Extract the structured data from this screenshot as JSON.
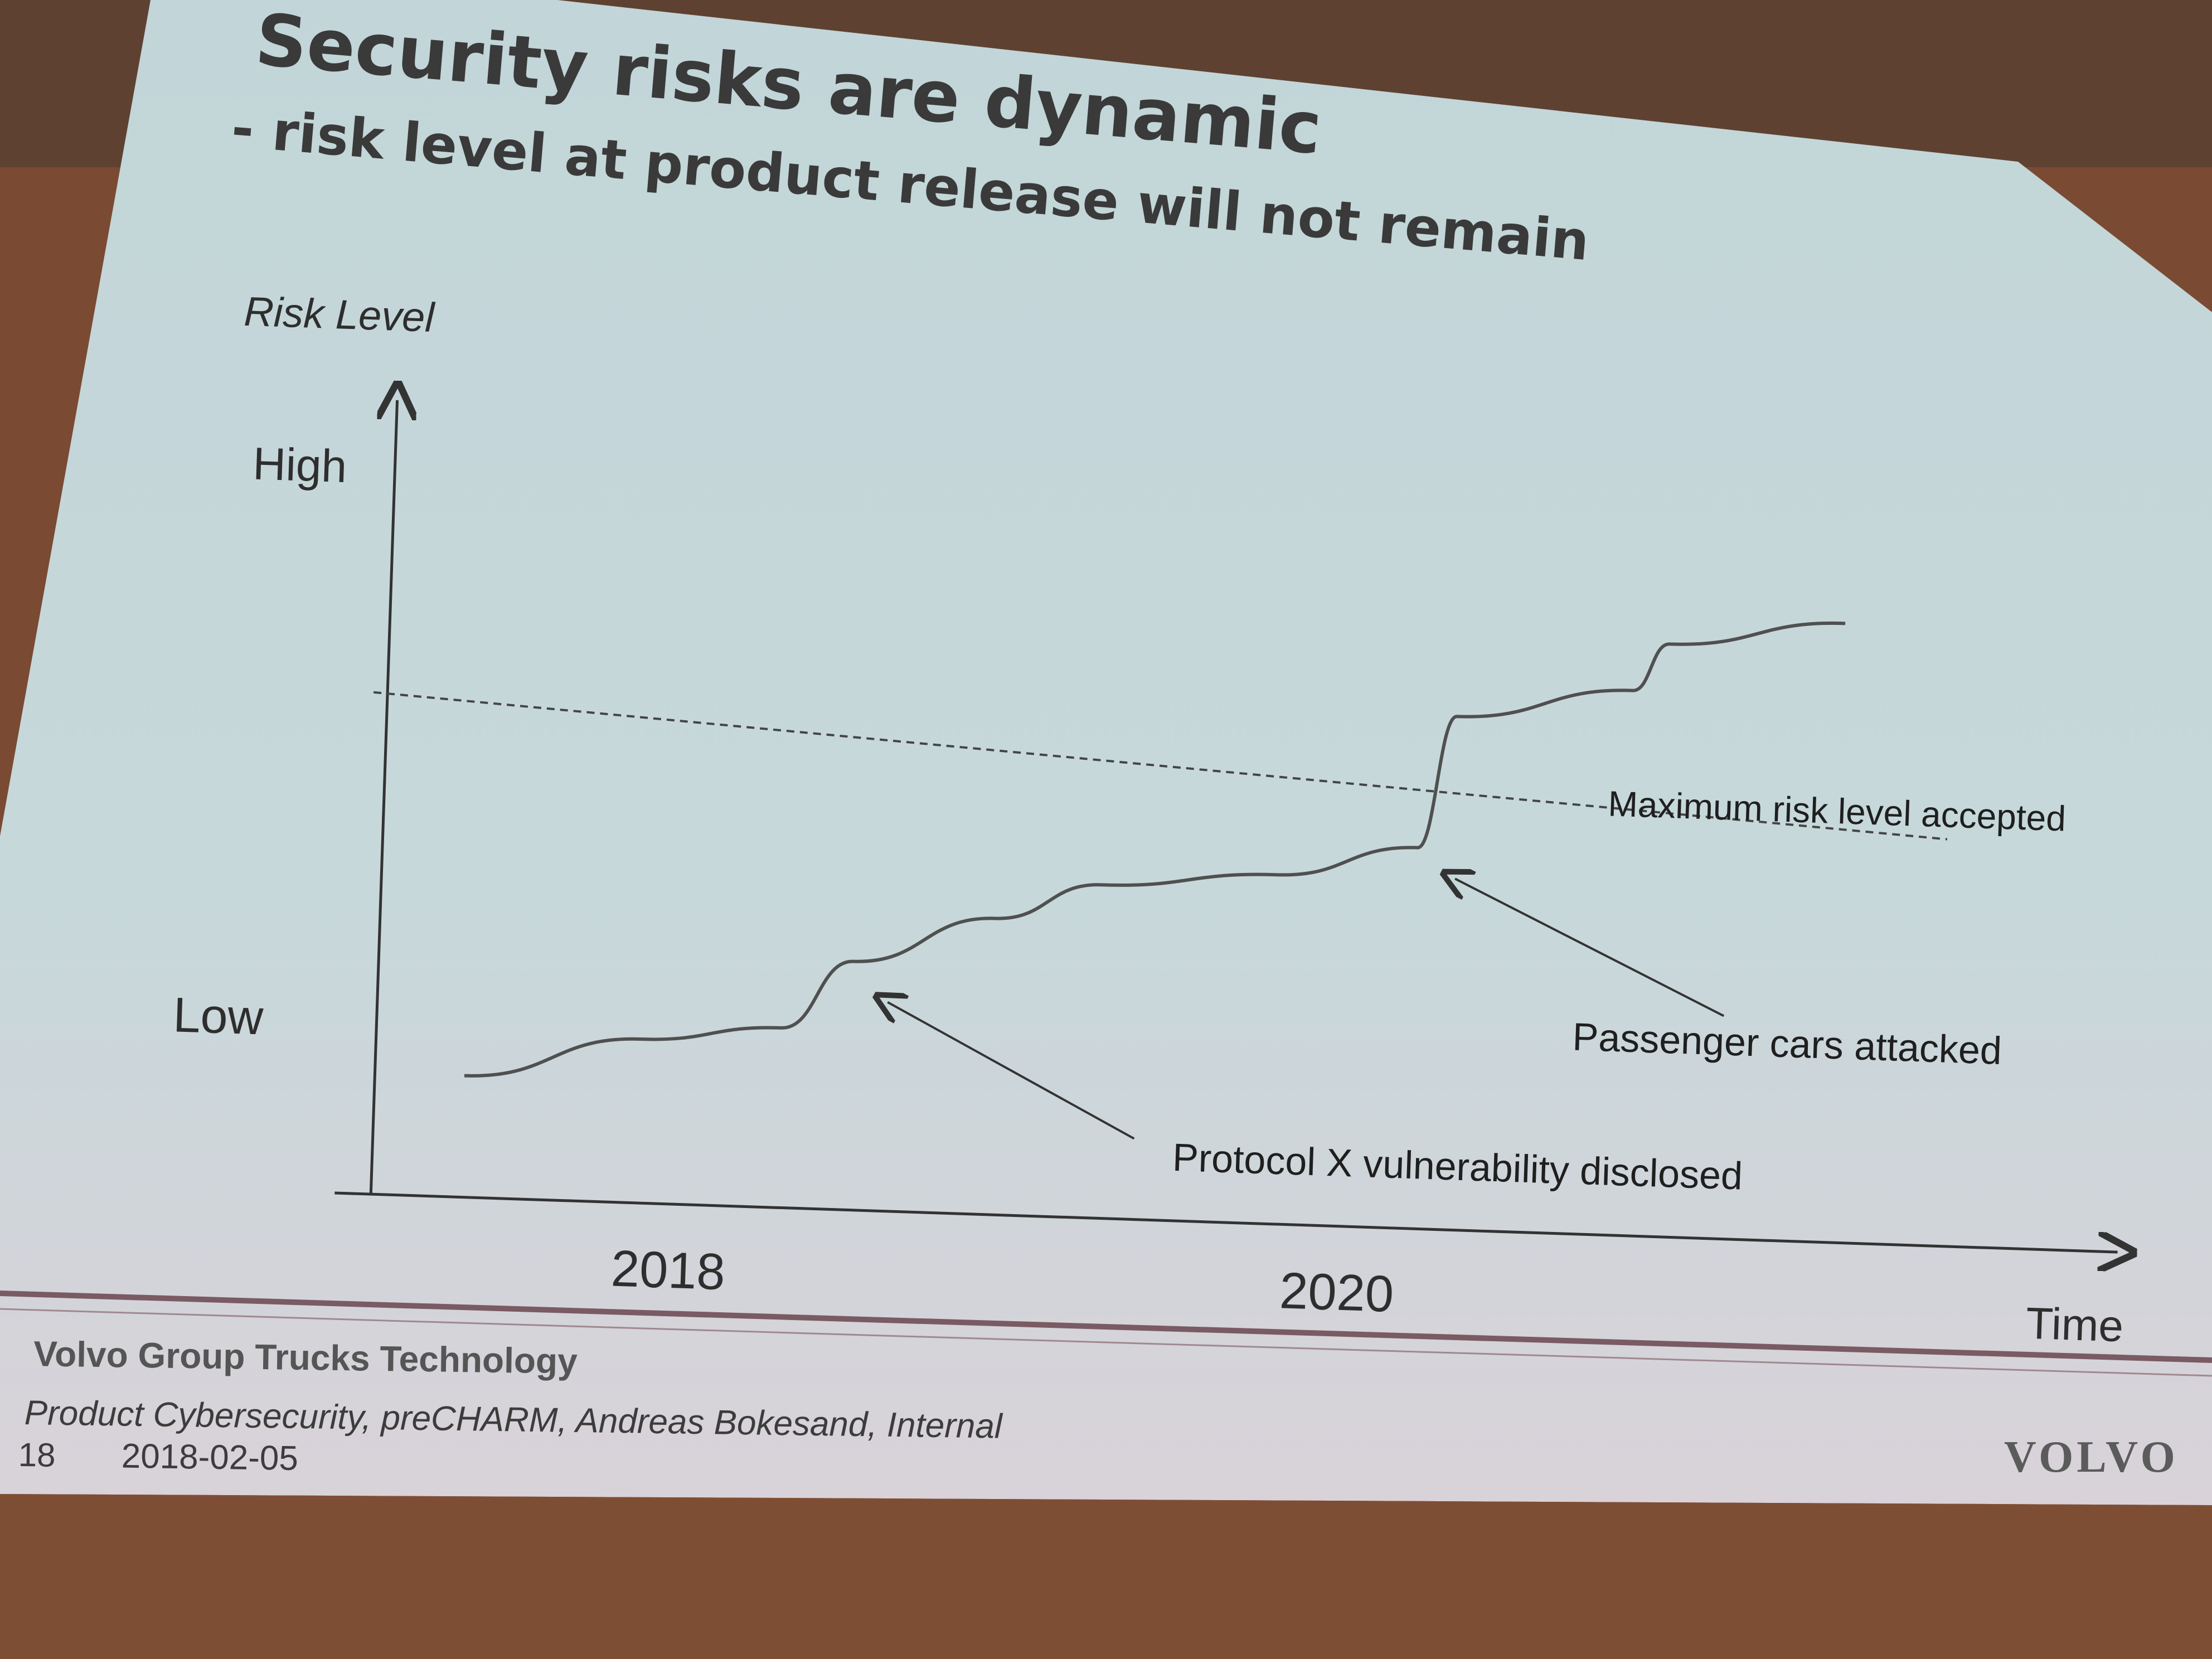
{
  "slide": {
    "title": "Security risks are dynamic",
    "subtitle": "- risk level at product release will not remain"
  },
  "chart_data": {
    "type": "line",
    "ylabel": "Risk Level",
    "xlabel": "Time",
    "y_ticks": [
      "High",
      "Low"
    ],
    "x_ticks": [
      "2018",
      "2020"
    ],
    "series": [
      {
        "values": [
          {
            "x": 2017.5,
            "y": 0.04
          },
          {
            "x": 2018.0,
            "y": 0.12
          },
          {
            "x": 2018.4,
            "y": 0.15
          },
          {
            "x": 2018.6,
            "y": 0.28
          },
          {
            "x": 2019.0,
            "y": 0.37
          },
          {
            "x": 2019.3,
            "y": 0.44
          },
          {
            "x": 2019.8,
            "y": 0.47
          },
          {
            "x": 2020.2,
            "y": 0.53
          },
          {
            "x": 2020.3,
            "y": 0.78
          },
          {
            "x": 2020.8,
            "y": 0.84
          },
          {
            "x": 2020.9,
            "y": 0.93
          },
          {
            "x": 2021.4,
            "y": 0.98
          }
        ]
      }
    ],
    "threshold": {
      "label": "Maximum risk level accepted",
      "y": 0.6
    },
    "annotations": [
      {
        "text": "Protocol X vulnerability disclosed",
        "x": 2018.6
      },
      {
        "text": "Passenger cars attacked",
        "x": 2020.3
      }
    ]
  },
  "footer": {
    "org": "Volvo Group Trucks Technology",
    "meta": "Product Cybersecurity, preCHARM, Andreas Bokesand, Internal",
    "page": "18",
    "date": "2018-02-05",
    "logo": "VOLVO"
  },
  "colors": {
    "screen": "#c6d6d9",
    "screen_bottom": "#d8d4da",
    "backdrop": "#7a4a33",
    "line": "#4f4f4f",
    "footer_rule": "#7a5b63"
  }
}
